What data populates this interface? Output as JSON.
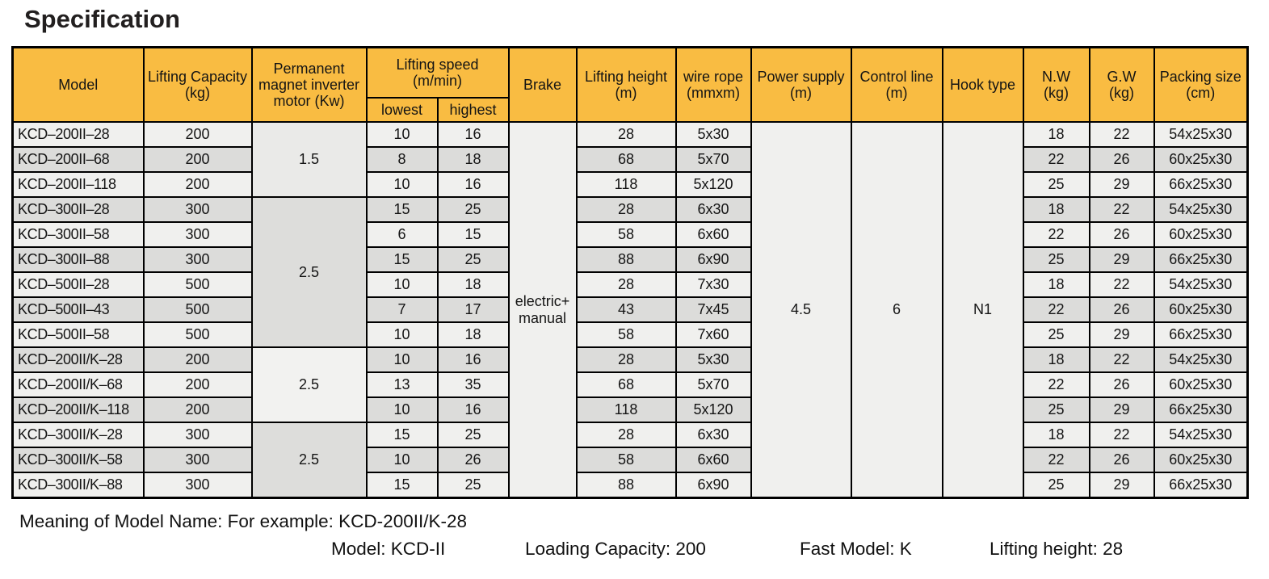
{
  "page": {
    "title": "Specification"
  },
  "colors": {
    "header_bg": "#F9BC42",
    "row_light": "#F0F0EE",
    "row_dark": "#DCDCDA",
    "border": "#000000"
  },
  "table": {
    "headers": {
      "model": "Model",
      "capacity": "Lifting Capacity\n(kg)",
      "motor": "Permanent\nmagnet inverter\nmotor (Kw)",
      "speed_group": "Lifting speed\n(m/min)",
      "speed_lowest": "lowest",
      "speed_highest": "highest",
      "brake": "Brake",
      "height": "Lifting height\n(m)",
      "rope": "wire rope\n(mmxm)",
      "power": "Power supply\n(m)",
      "control": "Control line\n(m)",
      "hook": "Hook type",
      "nw": "N.W\n(kg)",
      "gw": "G.W\n(kg)",
      "packing": "Packing size\n(cm)"
    },
    "merged": {
      "brake": "electric+\nmanual",
      "power_supply": "4.5",
      "control_line": "6",
      "hook_type": "N1"
    },
    "motor_groups": [
      {
        "start": 0,
        "span": 3,
        "value": "1.5",
        "shade": "a"
      },
      {
        "start": 3,
        "span": 6,
        "value": "2.5",
        "shade": "b"
      },
      {
        "start": 9,
        "span": 3,
        "value": "2.5",
        "shade": "c"
      },
      {
        "start": 12,
        "span": 3,
        "value": "2.5",
        "shade": "b"
      }
    ],
    "rows": [
      {
        "model": "KCD–200II–28",
        "capacity": "200",
        "lowest": "10",
        "highest": "16",
        "height": "28",
        "rope": "5x30",
        "nw": "18",
        "gw": "22",
        "packing": "54x25x30"
      },
      {
        "model": "KCD–200II–68",
        "capacity": "200",
        "lowest": "8",
        "highest": "18",
        "height": "68",
        "rope": "5x70",
        "nw": "22",
        "gw": "26",
        "packing": "60x25x30"
      },
      {
        "model": "KCD–200II–118",
        "capacity": "200",
        "lowest": "10",
        "highest": "16",
        "height": "118",
        "rope": "5x120",
        "nw": "25",
        "gw": "29",
        "packing": "66x25x30"
      },
      {
        "model": "KCD–300II–28",
        "capacity": "300",
        "lowest": "15",
        "highest": "25",
        "height": "28",
        "rope": "6x30",
        "nw": "18",
        "gw": "22",
        "packing": "54x25x30"
      },
      {
        "model": "KCD–300II–58",
        "capacity": "300",
        "lowest": "6",
        "highest": "15",
        "height": "58",
        "rope": "6x60",
        "nw": "22",
        "gw": "26",
        "packing": "60x25x30"
      },
      {
        "model": "KCD–300II–88",
        "capacity": "300",
        "lowest": "15",
        "highest": "25",
        "height": "88",
        "rope": "6x90",
        "nw": "25",
        "gw": "29",
        "packing": "66x25x30"
      },
      {
        "model": "KCD–500II–28",
        "capacity": "500",
        "lowest": "10",
        "highest": "18",
        "height": "28",
        "rope": "7x30",
        "nw": "18",
        "gw": "22",
        "packing": "54x25x30"
      },
      {
        "model": "KCD–500II–43",
        "capacity": "500",
        "lowest": "7",
        "highest": "17",
        "height": "43",
        "rope": "7x45",
        "nw": "22",
        "gw": "26",
        "packing": "60x25x30"
      },
      {
        "model": "KCD–500II–58",
        "capacity": "500",
        "lowest": "10",
        "highest": "18",
        "height": "58",
        "rope": "7x60",
        "nw": "25",
        "gw": "29",
        "packing": "66x25x30"
      },
      {
        "model": "KCD–200II/K–28",
        "capacity": "200",
        "lowest": "10",
        "highest": "16",
        "height": "28",
        "rope": "5x30",
        "nw": "18",
        "gw": "22",
        "packing": "54x25x30"
      },
      {
        "model": "KCD–200II/K–68",
        "capacity": "200",
        "lowest": "13",
        "highest": "35",
        "height": "68",
        "rope": "5x70",
        "nw": "22",
        "gw": "26",
        "packing": "60x25x30"
      },
      {
        "model": "KCD–200II/K–118",
        "capacity": "200",
        "lowest": "10",
        "highest": "16",
        "height": "118",
        "rope": "5x120",
        "nw": "25",
        "gw": "29",
        "packing": "66x25x30"
      },
      {
        "model": "KCD–300II/K–28",
        "capacity": "300",
        "lowest": "15",
        "highest": "25",
        "height": "28",
        "rope": "6x30",
        "nw": "18",
        "gw": "22",
        "packing": "54x25x30"
      },
      {
        "model": "KCD–300II/K–58",
        "capacity": "300",
        "lowest": "10",
        "highest": "26",
        "height": "58",
        "rope": "6x60",
        "nw": "22",
        "gw": "26",
        "packing": "60x25x30"
      },
      {
        "model": "KCD–300II/K–88",
        "capacity": "300",
        "lowest": "15",
        "highest": "25",
        "height": "88",
        "rope": "6x90",
        "nw": "25",
        "gw": "29",
        "packing": "66x25x30"
      }
    ]
  },
  "footer": {
    "line1": "Meaning of Model Name: For example: KCD-200II/K-28",
    "line2_segments": [
      "Model: KCD-II",
      "Loading Capacity: 200",
      "Fast Model: K",
      "Lifting height: 28"
    ]
  }
}
